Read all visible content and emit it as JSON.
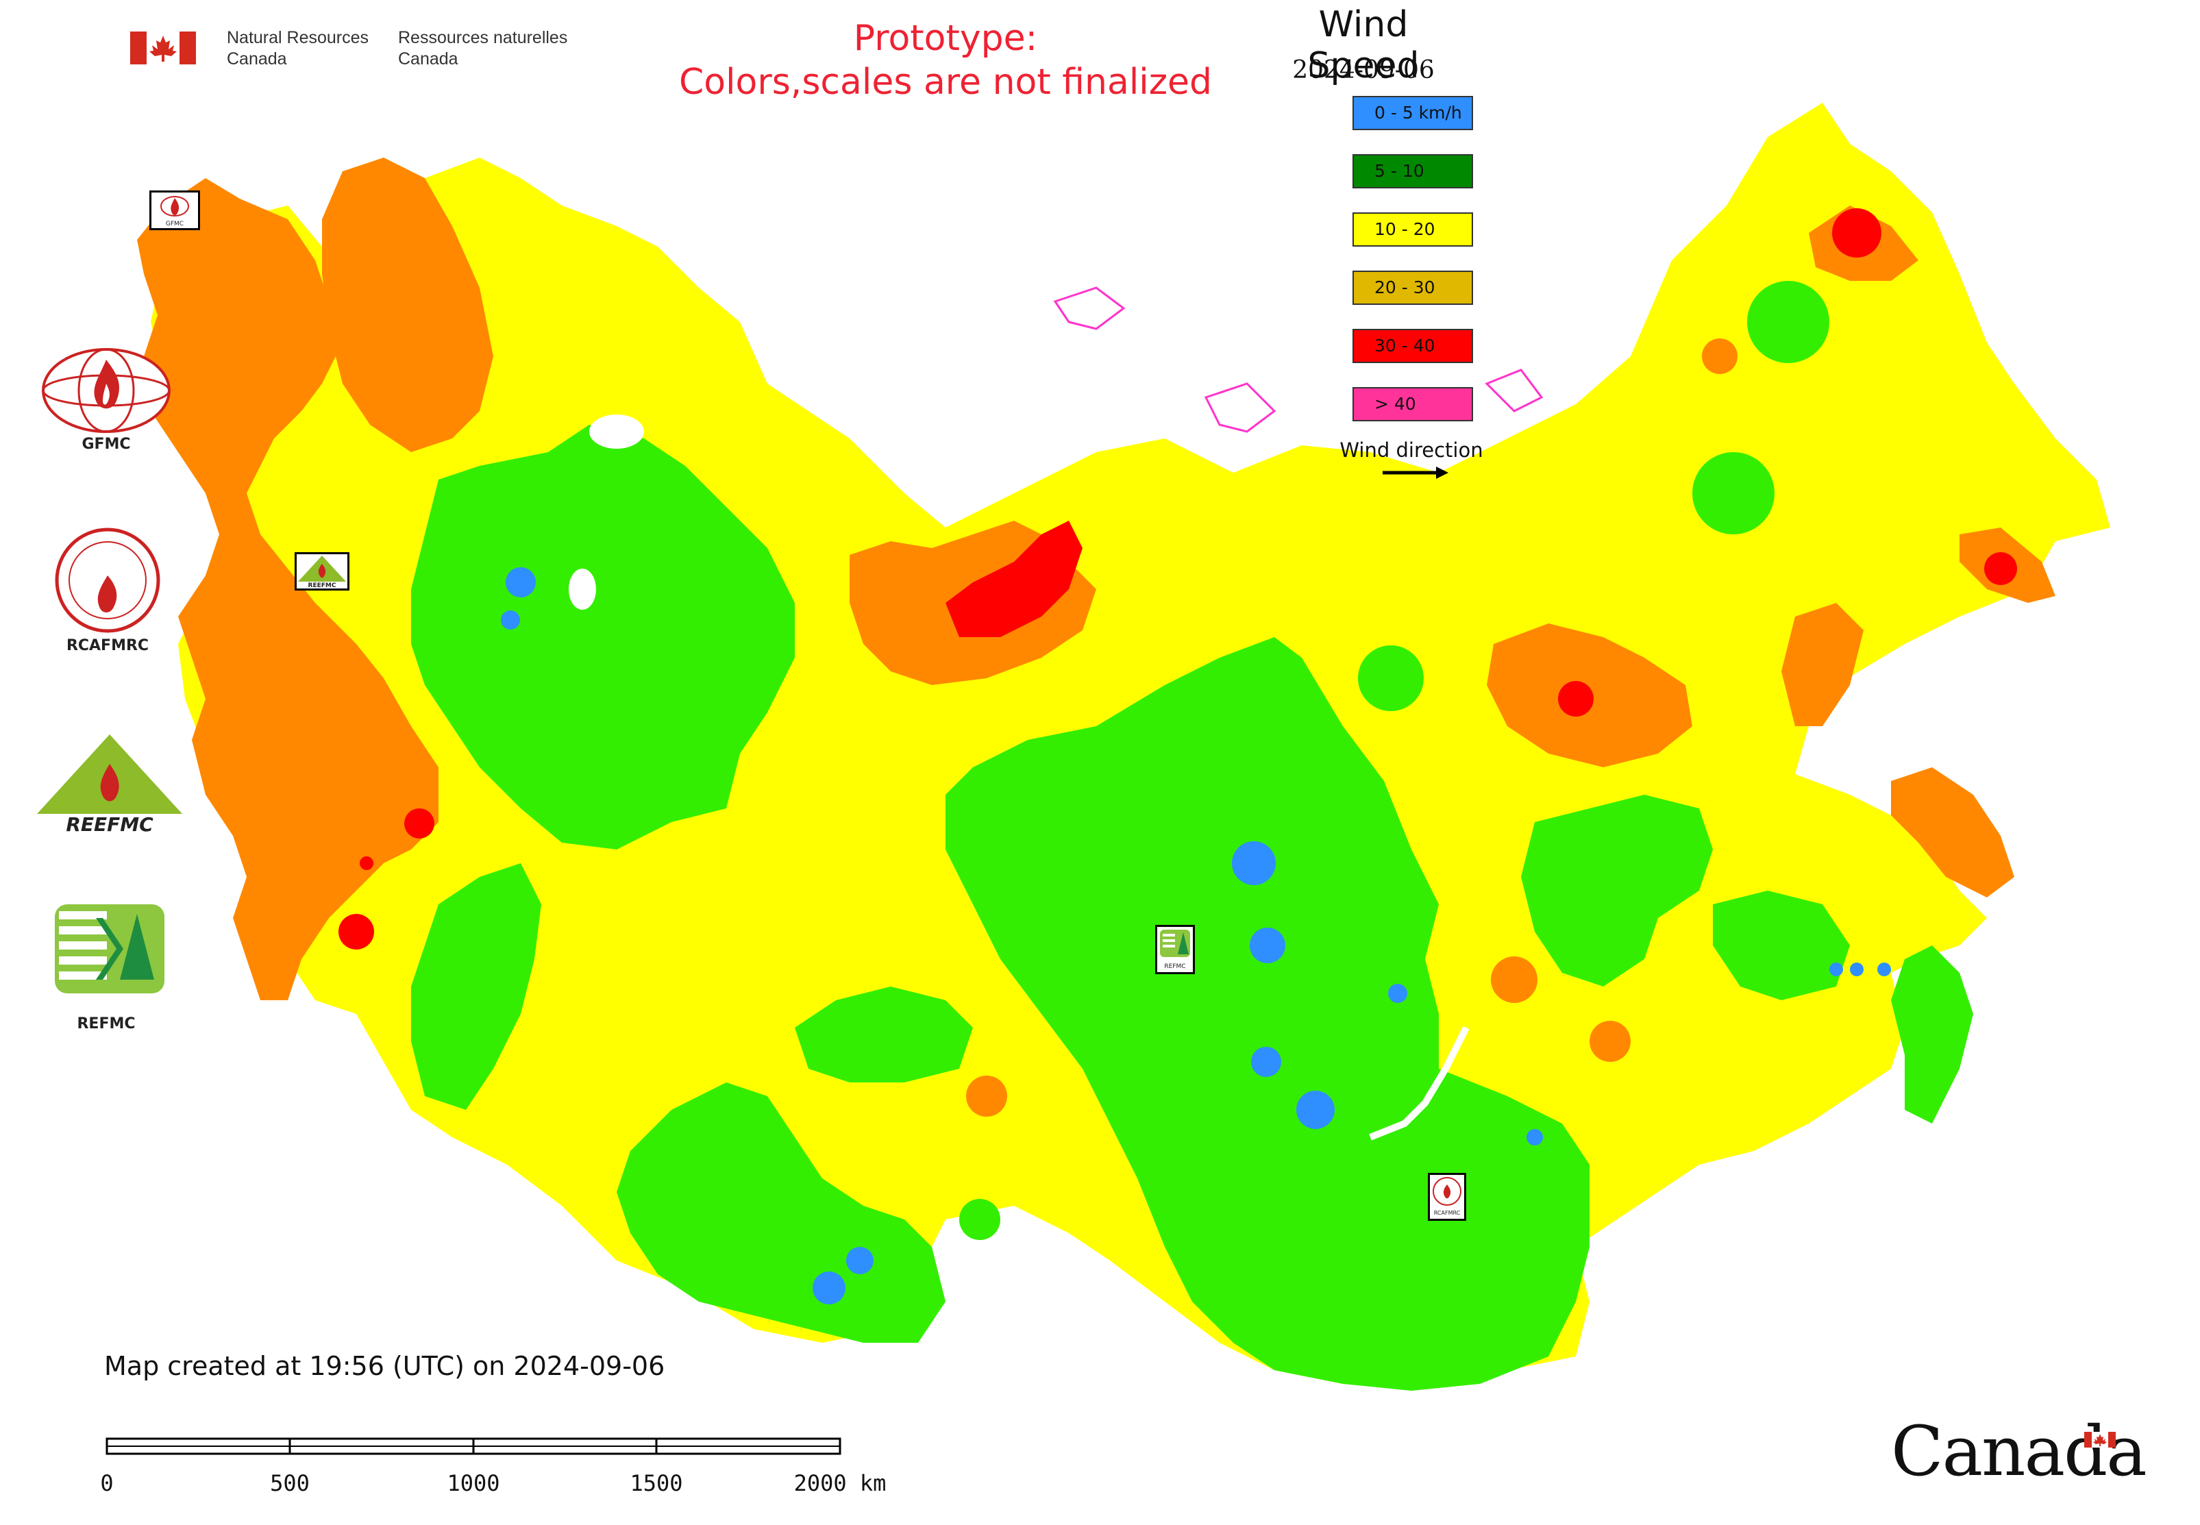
{
  "header": {
    "dept_en_line1": "Natural Resources",
    "dept_en_line2": "Canada",
    "dept_fr_line1": "Ressources naturelles",
    "dept_fr_line2": "Canada",
    "flag_color": "#d52b1e"
  },
  "notice": {
    "line1": "Prototype:",
    "line2": "Colors,scales are not finalized",
    "color": "#ee2233"
  },
  "legend": {
    "title": "Wind Speed",
    "date": "2024-09-06",
    "classes": [
      {
        "label": "0 - 5 km/h",
        "color": "#2f8fff"
      },
      {
        "label": "5 - 10",
        "color": "#008800"
      },
      {
        "label": "10 - 20",
        "color": "#ffff00"
      },
      {
        "label": "20 - 30",
        "color": "#e0b800"
      },
      {
        "label": "30 - 40",
        "color": "#ff0000"
      },
      {
        "label": "> 40",
        "color": "#ff3399"
      }
    ],
    "wind_direction_label": "Wind direction"
  },
  "logos": [
    {
      "caption": "GFMC",
      "icon": "gfmc-logo-icon"
    },
    {
      "caption": "RCAFMRC",
      "icon": "rcafmrc-logo-icon"
    },
    {
      "caption": "",
      "icon": "reefmc-logo-icon",
      "logo_text": "REEFMC"
    },
    {
      "caption": "REFMC",
      "icon": "refmc-logo-icon"
    }
  ],
  "map_markers": [
    {
      "label": "GFMC",
      "icon": "gfmc-marker-icon"
    },
    {
      "label": "REEFMC",
      "icon": "reefmc-marker-icon"
    },
    {
      "label": "REFMC",
      "icon": "refmc-marker-icon"
    },
    {
      "label": "RCAFMRC",
      "icon": "rcafmrc-marker-icon"
    }
  ],
  "map_colors": {
    "low": "#2f8fff",
    "moderate": "#33ee00",
    "medium": "#ffff00",
    "high": "#ff8800",
    "very_high": "#ff0000",
    "extreme": "#ff3399"
  },
  "footer": {
    "map_created": "Map created at 19:56 (UTC) on 2024-09-06",
    "scale_ticks": [
      "0",
      "500",
      "1000",
      "1500",
      "2000 km"
    ],
    "wordmark": "Canada"
  }
}
